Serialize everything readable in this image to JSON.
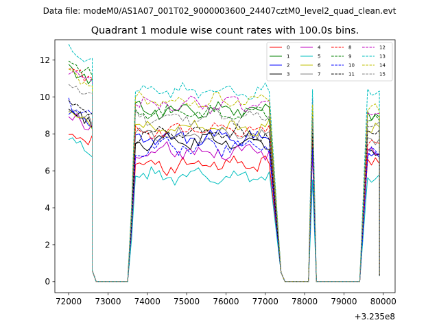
{
  "chart_data": {
    "type": "line",
    "suptitle": "Data file: modeM0/AS1A07_001T02_9000003600_24407cztM0_level2_quad_clean.evt",
    "title": "Quadrant 1 module wise count rates with 100.0s bins.",
    "xlabel": "",
    "ylabel": "",
    "x_offset_label": "+3.235e8",
    "xlim": [
      71650,
      80300
    ],
    "ylim": [
      -0.6,
      13.1
    ],
    "x_ticks": [
      72000,
      73000,
      74000,
      75000,
      76000,
      77000,
      78000,
      79000,
      80000
    ],
    "x_tick_labels": [
      "72000",
      "73000",
      "74000",
      "75000",
      "76000",
      "77000",
      "78000",
      "79000",
      "80000"
    ],
    "y_ticks": [
      0,
      2,
      4,
      6,
      8,
      10,
      12
    ],
    "y_tick_labels": [
      "0",
      "2",
      "4",
      "6",
      "8",
      "10",
      "12"
    ],
    "legend_position": "top-right",
    "gap_rate": 0.0,
    "segments": [
      {
        "start": 72000,
        "bins": 7
      },
      {
        "start": 73700,
        "bins": 35
      },
      {
        "start": 78200,
        "bins": 1
      },
      {
        "start": 79600,
        "bins": 4
      }
    ],
    "edge_x": [
      72600,
      73500,
      77400,
      78100,
      78300,
      79400,
      79900
    ],
    "series": [
      {
        "name": "0",
        "color": "#ff0000",
        "dash": "solid",
        "seg_means": [
          7.6,
          6.3,
          9.0,
          6.4
        ],
        "amp": 0.35,
        "peak": 8.0
      },
      {
        "name": "1",
        "color": "#008000",
        "dash": "solid",
        "seg_means": [
          10.8,
          9.3,
          9.8,
          9.0
        ],
        "amp": 0.3,
        "peak": 9.2
      },
      {
        "name": "2",
        "color": "#0000ff",
        "dash": "solid",
        "seg_means": [
          8.6,
          7.8,
          8.0,
          7.0
        ],
        "amp": 0.3,
        "peak": 7.3
      },
      {
        "name": "3",
        "color": "#000000",
        "dash": "solid",
        "seg_means": [
          8.6,
          7.6,
          8.2,
          7.0
        ],
        "amp": 0.3,
        "peak": 7.4
      },
      {
        "name": "4",
        "color": "#bf00bf",
        "dash": "solid",
        "seg_means": [
          8.3,
          7.1,
          8.0,
          7.0
        ],
        "amp": 0.35,
        "peak": 7.0
      },
      {
        "name": "5",
        "color": "#00bfbf",
        "dash": "solid",
        "seg_means": [
          7.0,
          5.7,
          9.0,
          5.5
        ],
        "amp": 0.3,
        "peak": 5.5
      },
      {
        "name": "6",
        "color": "#bfbf00",
        "dash": "solid",
        "seg_means": [
          8.4,
          8.3,
          8.4,
          8.3
        ],
        "amp": 0.3,
        "peak": 8.6
      },
      {
        "name": "7",
        "color": "#808080",
        "dash": "solid",
        "seg_means": [
          8.7,
          7.9,
          8.4,
          7.6
        ],
        "amp": 0.3,
        "peak": 7.8
      },
      {
        "name": "8",
        "color": "#ff0000",
        "dash": "dashed",
        "seg_means": [
          10.9,
          8.2,
          9.5,
          7.4
        ],
        "amp": 0.3,
        "peak": 7.8
      },
      {
        "name": "9",
        "color": "#008000",
        "dash": "dashed",
        "seg_means": [
          11.2,
          9.1,
          9.8,
          8.8
        ],
        "amp": 0.3,
        "peak": 9.1
      },
      {
        "name": "10",
        "color": "#0000ff",
        "dash": "dashed",
        "seg_means": [
          8.9,
          7.3,
          8.5,
          7.0
        ],
        "amp": 0.35,
        "peak": 7.2
      },
      {
        "name": "11",
        "color": "#000000",
        "dash": "dashed",
        "seg_means": [
          8.9,
          8.0,
          8.6,
          8.1
        ],
        "amp": 0.3,
        "peak": 8.3
      },
      {
        "name": "12",
        "color": "#bf00bf",
        "dash": "dashed",
        "seg_means": [
          10.7,
          9.6,
          9.8,
          9.3
        ],
        "amp": 0.3,
        "peak": 9.9
      },
      {
        "name": "13",
        "color": "#00bfbf",
        "dash": "dashed",
        "seg_means": [
          11.9,
          10.3,
          10.5,
          10.2
        ],
        "amp": 0.25,
        "peak": 10.4
      },
      {
        "name": "14",
        "color": "#bfbf00",
        "dash": "dashed",
        "seg_means": [
          10.6,
          9.8,
          9.5,
          9.4
        ],
        "amp": 0.3,
        "peak": 9.6
      },
      {
        "name": "15",
        "color": "#808080",
        "dash": "dashed",
        "seg_means": [
          10.0,
          8.9,
          9.0,
          8.6
        ],
        "amp": 0.3,
        "peak": 8.8
      }
    ]
  }
}
